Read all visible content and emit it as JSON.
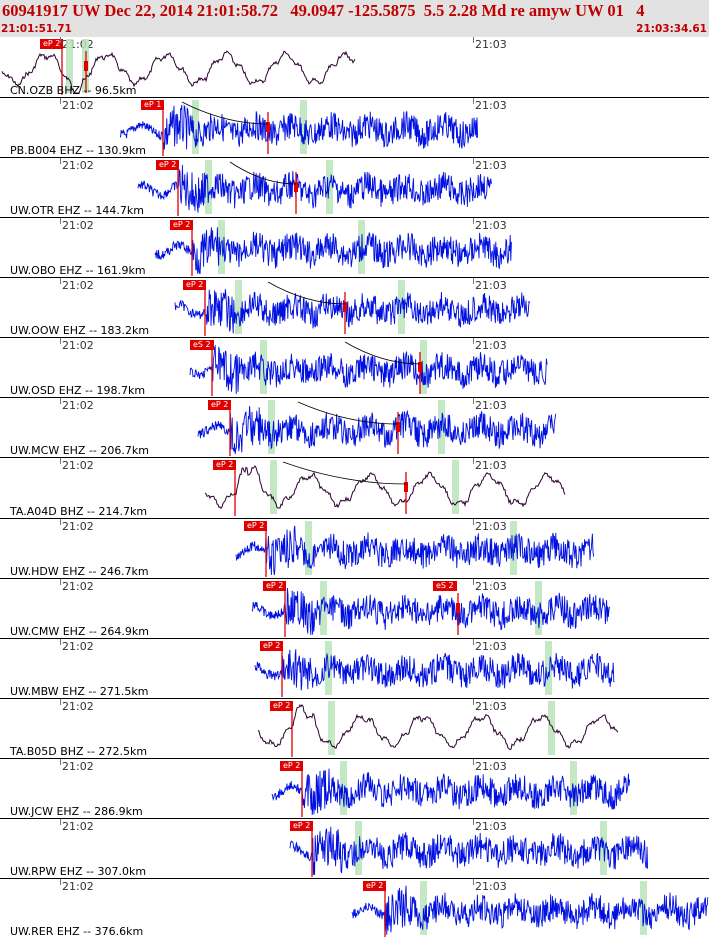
{
  "header": {
    "title": "60941917 UW Dec 22, 2014 21:01:58.72   49.0947 -125.5875  5.5 2.28 Md re amyw UW 01   4",
    "start_time": "21:01:51.71",
    "end_time": "21:03:34.61"
  },
  "time_labels": [
    "21:02",
    "21:03"
  ],
  "colors": {
    "header_bg": "#e2e2e2",
    "header_text": "#c00000",
    "trace_bb": "#2b0030",
    "trace_sp": "#0010e0",
    "pick_flag": "#e00000",
    "window": "#b9e4b9",
    "moveout": "#000000"
  },
  "stations": [
    {
      "label": "CN.OZB BHZ --  96.5km",
      "pick": "eP 2",
      "type": "bb"
    },
    {
      "label": "PB.B004 EHZ --  130.9km",
      "pick": "eP 1",
      "type": "sp"
    },
    {
      "label": "UW.OTR EHZ --  144.7km",
      "pick": "eP 2",
      "type": "sp"
    },
    {
      "label": "UW.OBO EHZ --  161.9km",
      "pick": "eP 2",
      "type": "sp"
    },
    {
      "label": "UW.OOW EHZ --  183.2km",
      "pick": "eP 2",
      "type": "sp"
    },
    {
      "label": "UW.OSD EHZ --  198.7km",
      "pick": "eS 2",
      "type": "sp"
    },
    {
      "label": "UW.MCW EHZ --  206.7km",
      "pick": "eP 2",
      "type": "sp"
    },
    {
      "label": "TA.A04D BHZ --  214.7km",
      "pick": "eP 2",
      "type": "bb"
    },
    {
      "label": "UW.HDW EHZ --  246.7km",
      "pick": "eP 2",
      "type": "sp"
    },
    {
      "label": "UW.CMW EHZ --  264.9km",
      "pick": "eP 2",
      "type": "sp",
      "extra_pick": "eS 2"
    },
    {
      "label": "UW.MBW EHZ --  271.5km",
      "pick": "eP 2",
      "type": "sp"
    },
    {
      "label": "TA.B05D BHZ --  272.5km",
      "pick": "eP 2",
      "type": "bb"
    },
    {
      "label": "UW.JCW EHZ --  286.9km",
      "pick": "eP 2",
      "type": "sp"
    },
    {
      "label": "UW.RPW EHZ --  307.0km",
      "pick": "eP 2",
      "type": "sp"
    },
    {
      "label": "UW.RER EHZ --  376.6km",
      "pick": "eP 2",
      "type": "sp"
    }
  ]
}
